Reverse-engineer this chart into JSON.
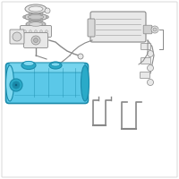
{
  "bg_color": "#ffffff",
  "tank_color": "#5bc8e8",
  "tank_outline": "#1a8aaa",
  "tank_light": "#7dd8f0",
  "tank_dark": "#2aaac8",
  "part_color": "#e8e8e8",
  "part_outline": "#888888",
  "line_color": "#aaaaaa",
  "white": "#ffffff"
}
